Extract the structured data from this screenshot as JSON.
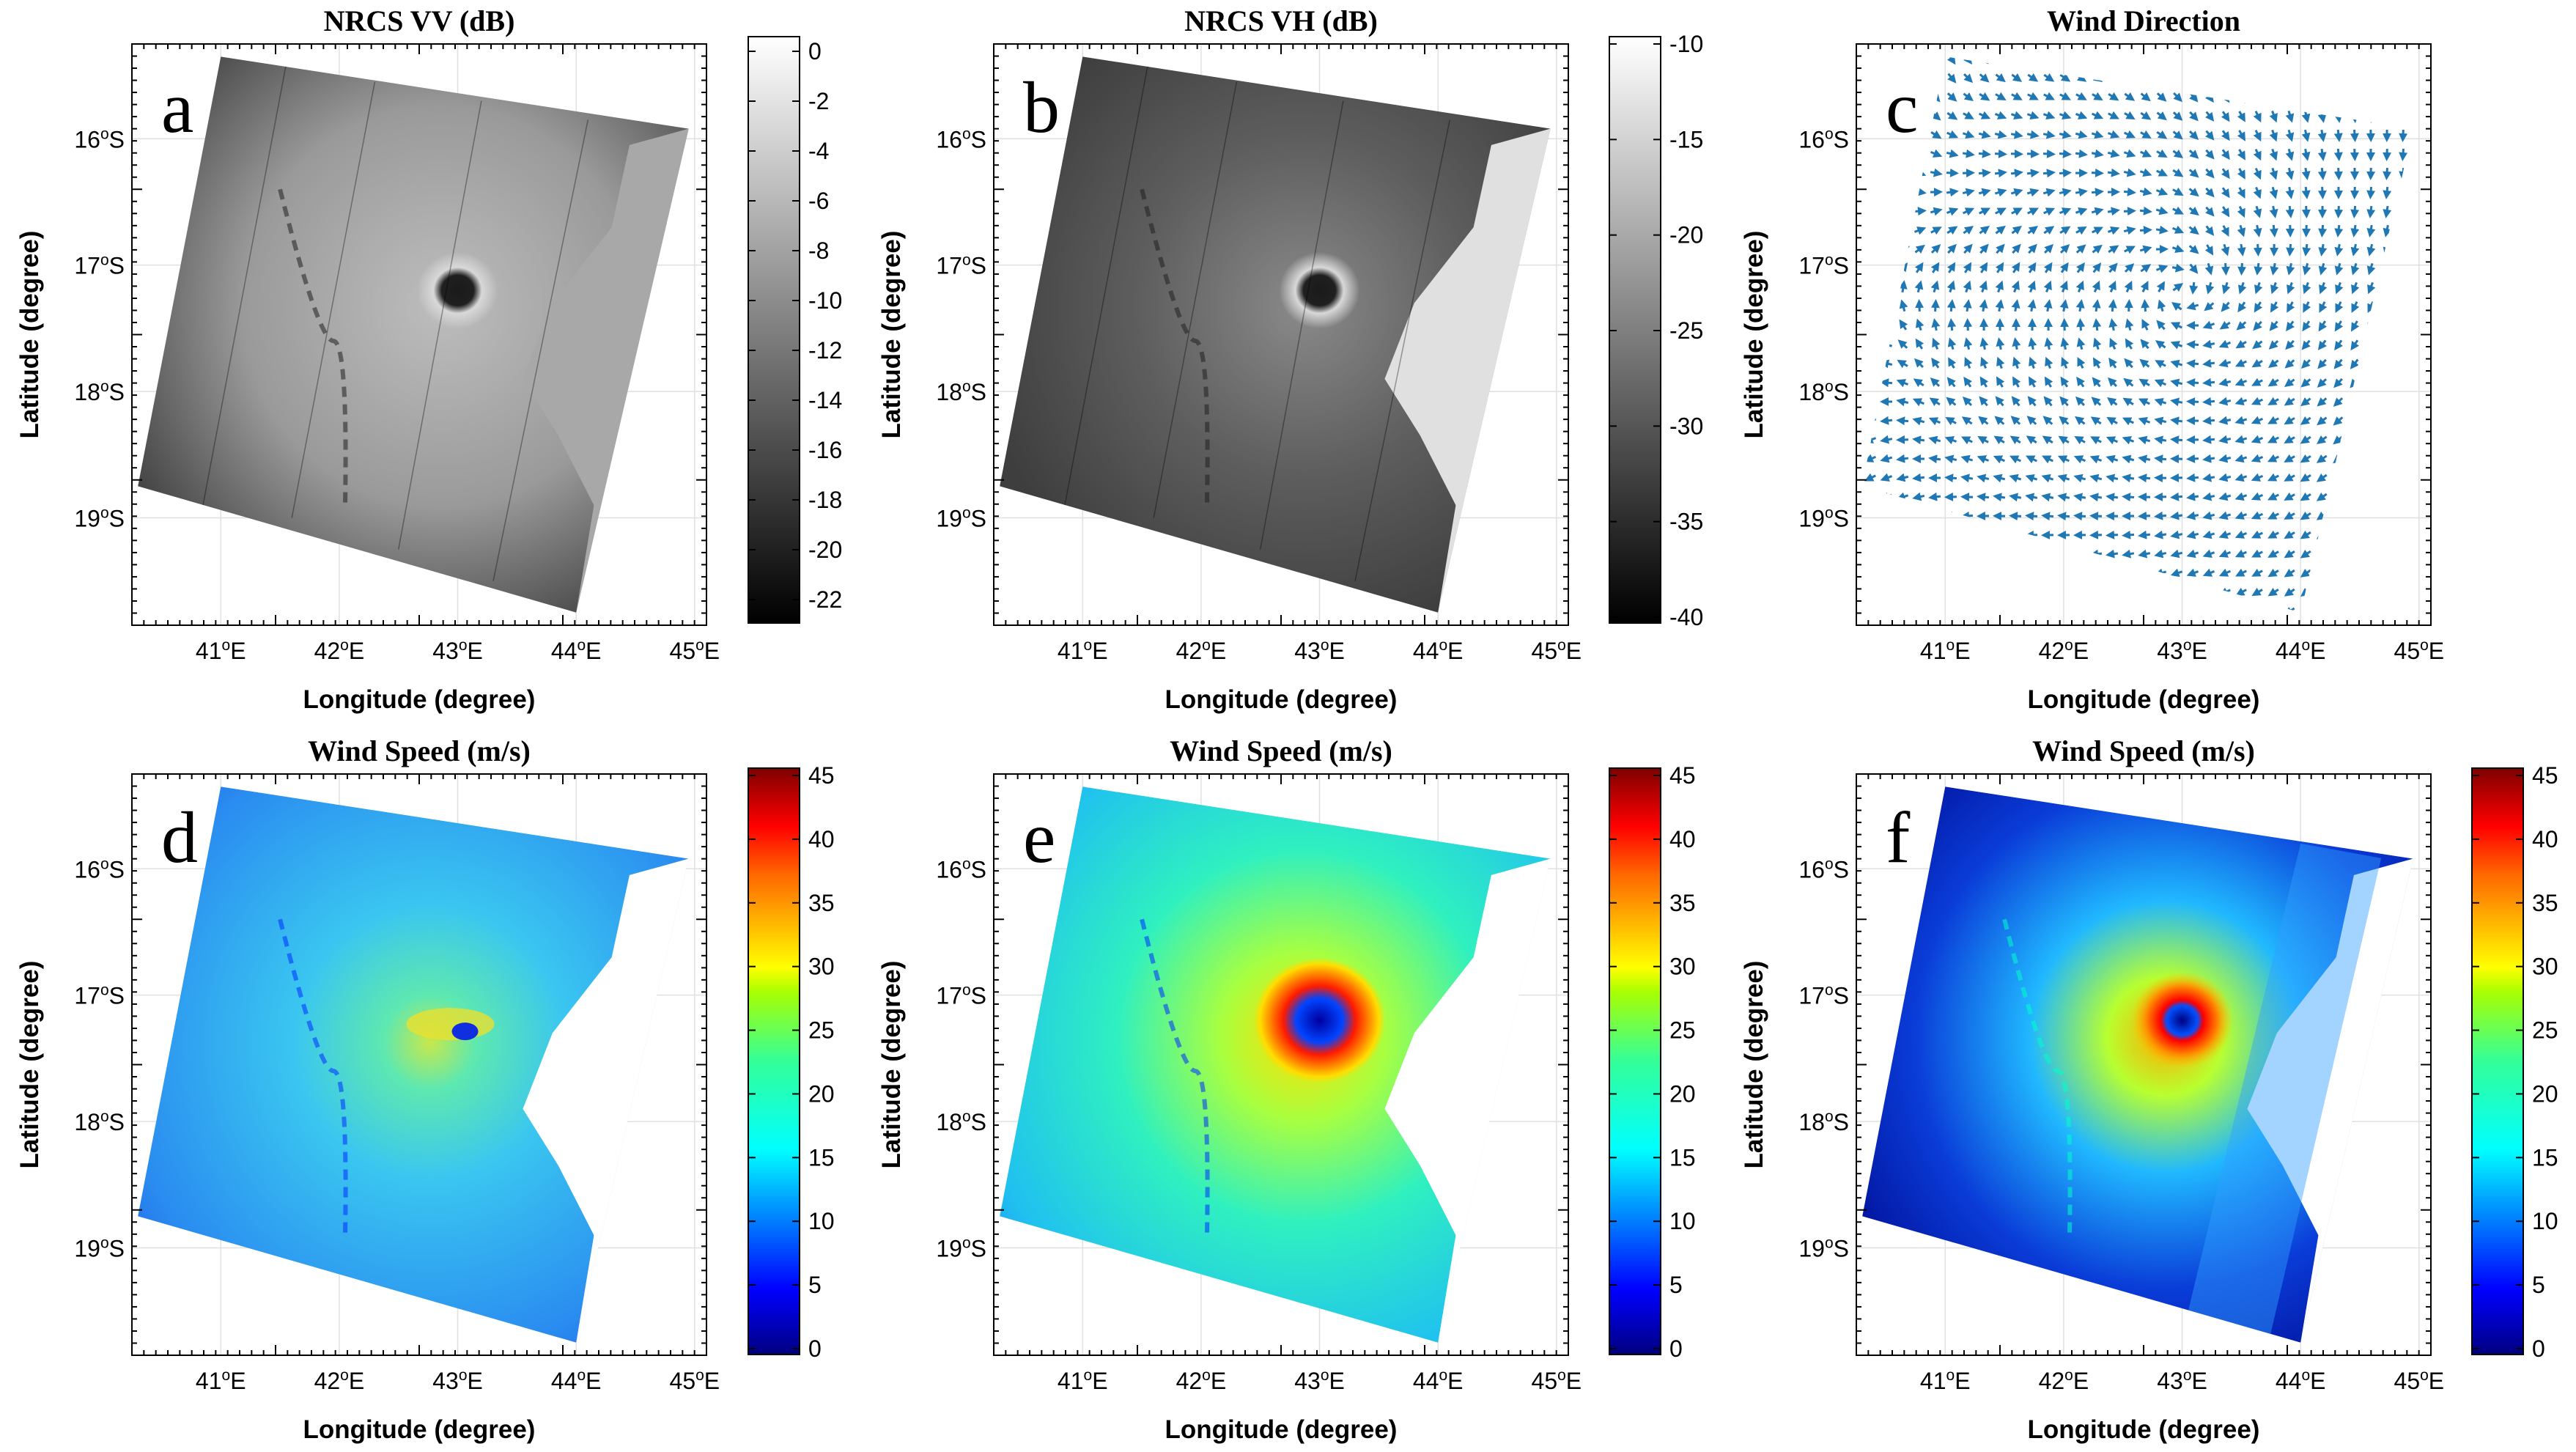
{
  "panels": [
    {
      "id": "a",
      "letter": "a",
      "title": "NRCS VV (dB)",
      "type": "nrcs-vv",
      "xlabel": "Longitude (degree)",
      "ylabel": "Latitude (degree)",
      "colorbar": {
        "colormap": "gray",
        "ticks": [
          "0",
          "-2",
          "-4",
          "-6",
          "-8",
          "-10",
          "-12",
          "-14",
          "-16",
          "-18",
          "-20",
          "-22"
        ]
      }
    },
    {
      "id": "b",
      "letter": "b",
      "title": "NRCS VH (dB)",
      "type": "nrcs-vh",
      "xlabel": "Longitude (degree)",
      "ylabel": "Latitude (degree)",
      "colorbar": {
        "colormap": "gray",
        "ticks": [
          "-10",
          "-15",
          "-20",
          "-25",
          "-30",
          "-35",
          "-40"
        ]
      }
    },
    {
      "id": "c",
      "letter": "c",
      "title": "Wind Direction",
      "type": "wind-direction",
      "xlabel": "Longitude (degree)",
      "ylabel": "Latitude (degree)"
    },
    {
      "id": "d",
      "letter": "d",
      "title": "Wind Speed (m/s)",
      "type": "wind-speed",
      "xlabel": "Longitude (degree)",
      "ylabel": "Latitude (degree)",
      "colorbar": {
        "colormap": "jet",
        "ticks": [
          "45",
          "40",
          "35",
          "30",
          "25",
          "20",
          "15",
          "10",
          "5",
          "0"
        ]
      }
    },
    {
      "id": "e",
      "letter": "e",
      "title": "Wind Speed (m/s)",
      "type": "wind-speed-smooth",
      "xlabel": "Longitude (degree)",
      "ylabel": "Latitude (degree)",
      "colorbar": {
        "colormap": "jet",
        "ticks": [
          "45",
          "40",
          "35",
          "30",
          "25",
          "20",
          "15",
          "10",
          "5",
          "0"
        ]
      }
    },
    {
      "id": "f",
      "letter": "f",
      "title": "Wind Speed (m/s)",
      "type": "wind-speed-hires",
      "xlabel": "Longitude (degree)",
      "ylabel": "Latitude (degree)",
      "colorbar": {
        "colormap": "jet",
        "ticks": [
          "45",
          "40",
          "35",
          "30",
          "25",
          "20",
          "15",
          "10",
          "5",
          "0"
        ]
      }
    }
  ],
  "lon_ticks": [
    {
      "deg": "41",
      "sup": "o",
      "hem": "E"
    },
    {
      "deg": "42",
      "sup": "o",
      "hem": "E"
    },
    {
      "deg": "43",
      "sup": "o",
      "hem": "E"
    },
    {
      "deg": "44",
      "sup": "o",
      "hem": "E"
    },
    {
      "deg": "45",
      "sup": "o",
      "hem": "E"
    }
  ],
  "lat_ticks": [
    {
      "deg": "16",
      "sup": "o",
      "hem": "S"
    },
    {
      "deg": "17",
      "sup": "o",
      "hem": "S"
    },
    {
      "deg": "18",
      "sup": "o",
      "hem": "S"
    },
    {
      "deg": "19",
      "sup": "o",
      "hem": "S"
    }
  ],
  "colors": {
    "arrow": "#1f77b4",
    "grid": "#e0e0e0",
    "frame": "#000000"
  }
}
